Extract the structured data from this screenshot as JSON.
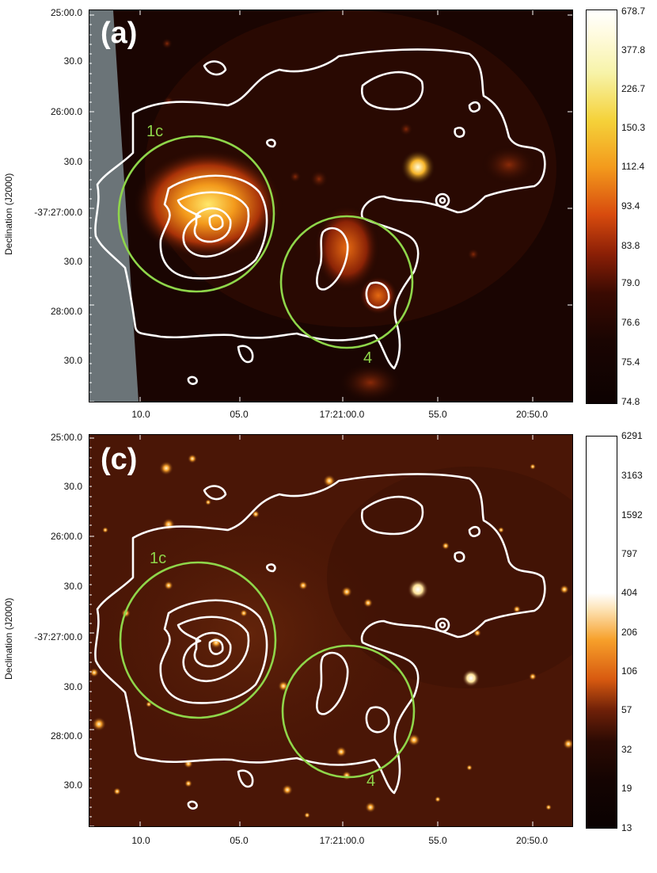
{
  "panels": [
    {
      "label": "(a)",
      "regions": [
        "1c",
        "4"
      ],
      "y_axis": {
        "title": "Declination (J2000)",
        "ticks": [
          "25:00.0",
          "30.0",
          "26:00.0",
          "30.0",
          "-37:27:00.0",
          "30.0",
          "28:00.0",
          "30.0"
        ]
      },
      "x_axis": {
        "ticks": [
          "10.0",
          "05.0",
          "17:21:00.0",
          "55.0",
          "20:50.0"
        ]
      },
      "colorbar": {
        "ticks": [
          "678.7",
          "377.8",
          "226.7",
          "150.3",
          "112.4",
          "93.4",
          "83.8",
          "79.0",
          "76.6",
          "75.4",
          "74.8"
        ]
      }
    },
    {
      "label": "(c)",
      "regions": [
        "1c",
        "4"
      ],
      "y_axis": {
        "title": "Declination (J2000)",
        "ticks": [
          "25:00.0",
          "30.0",
          "26:00.0",
          "30.0",
          "-37:27:00.0",
          "30.0",
          "28:00.0",
          "30.0"
        ]
      },
      "x_axis": {
        "ticks": [
          "10.0",
          "05.0",
          "17:21:00.0",
          "55.0",
          "20:50.0"
        ]
      },
      "colorbar": {
        "ticks": [
          "6291",
          "3163",
          "1592",
          "797",
          "404",
          "206",
          "106",
          "57",
          "32",
          "19",
          "13"
        ]
      }
    }
  ],
  "colors": {
    "contour": "#ffffff",
    "region_circle": "#8fd64a",
    "mask": "#6b7478",
    "background_a": "#1a0502",
    "background_c": "#4a1606"
  }
}
